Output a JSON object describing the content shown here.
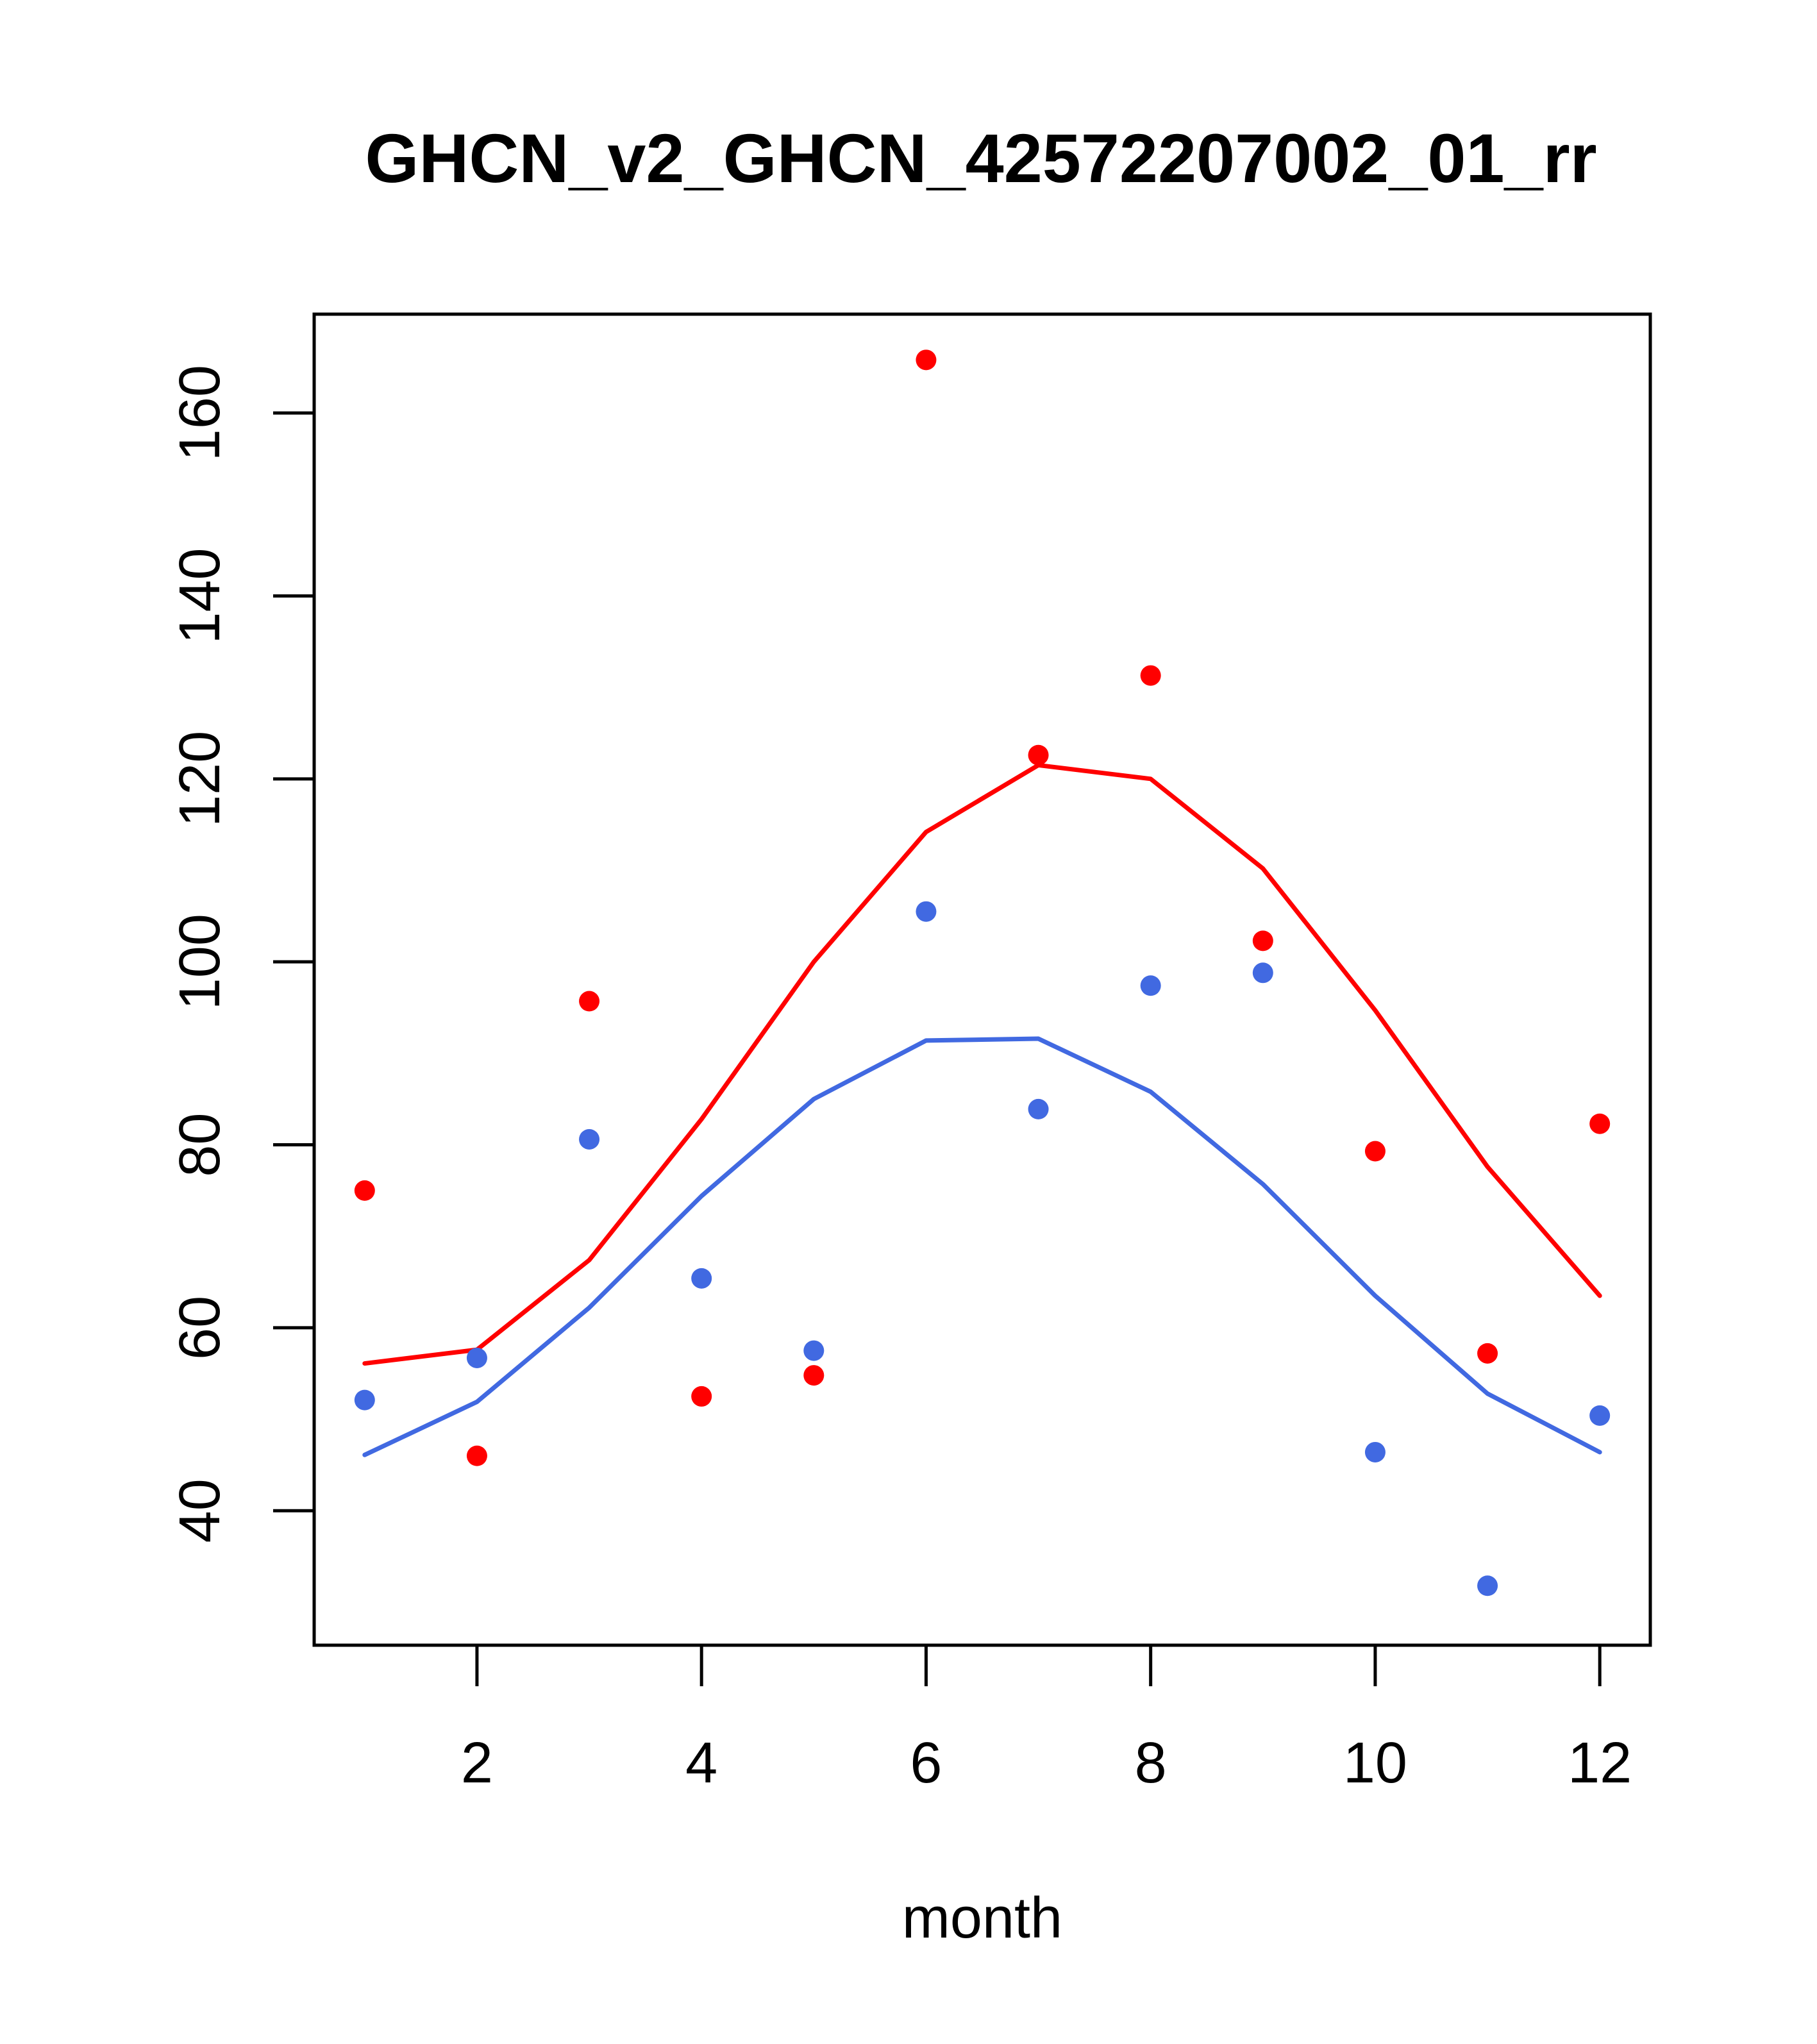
{
  "chart_data": {
    "type": "scatter",
    "title": "GHCN_v2_GHCN_42572207002_01_rr",
    "xlabel": "month",
    "ylabel": "",
    "xlim": [
      0.55,
      12.45
    ],
    "ylim": [
      25.3,
      170.8
    ],
    "x_ticks": [
      2,
      4,
      6,
      8,
      10,
      12
    ],
    "y_ticks": [
      40,
      60,
      80,
      100,
      120,
      140,
      160
    ],
    "x": [
      1,
      2,
      3,
      4,
      5,
      6,
      7,
      8,
      9,
      10,
      11,
      12
    ],
    "series": [
      {
        "color": "#ff0000",
        "points": [
          75.0,
          46.0,
          95.7,
          52.5,
          54.8,
          165.8,
          122.6,
          131.3,
          102.3,
          79.3,
          57.2,
          82.3
        ],
        "line": [
          56.1,
          57.6,
          67.4,
          82.8,
          100.0,
          114.2,
          121.5,
          120.0,
          110.2,
          94.7,
          77.6,
          63.5
        ]
      },
      {
        "color": "#4169e1",
        "points": [
          52.1,
          56.7,
          80.6,
          65.4,
          57.5,
          105.5,
          83.9,
          97.4,
          98.8,
          46.4,
          31.8,
          50.4
        ],
        "line": [
          46.1,
          51.9,
          62.2,
          74.4,
          85.0,
          91.4,
          91.6,
          85.8,
          75.7,
          63.5,
          52.8,
          46.4
        ]
      }
    ]
  }
}
